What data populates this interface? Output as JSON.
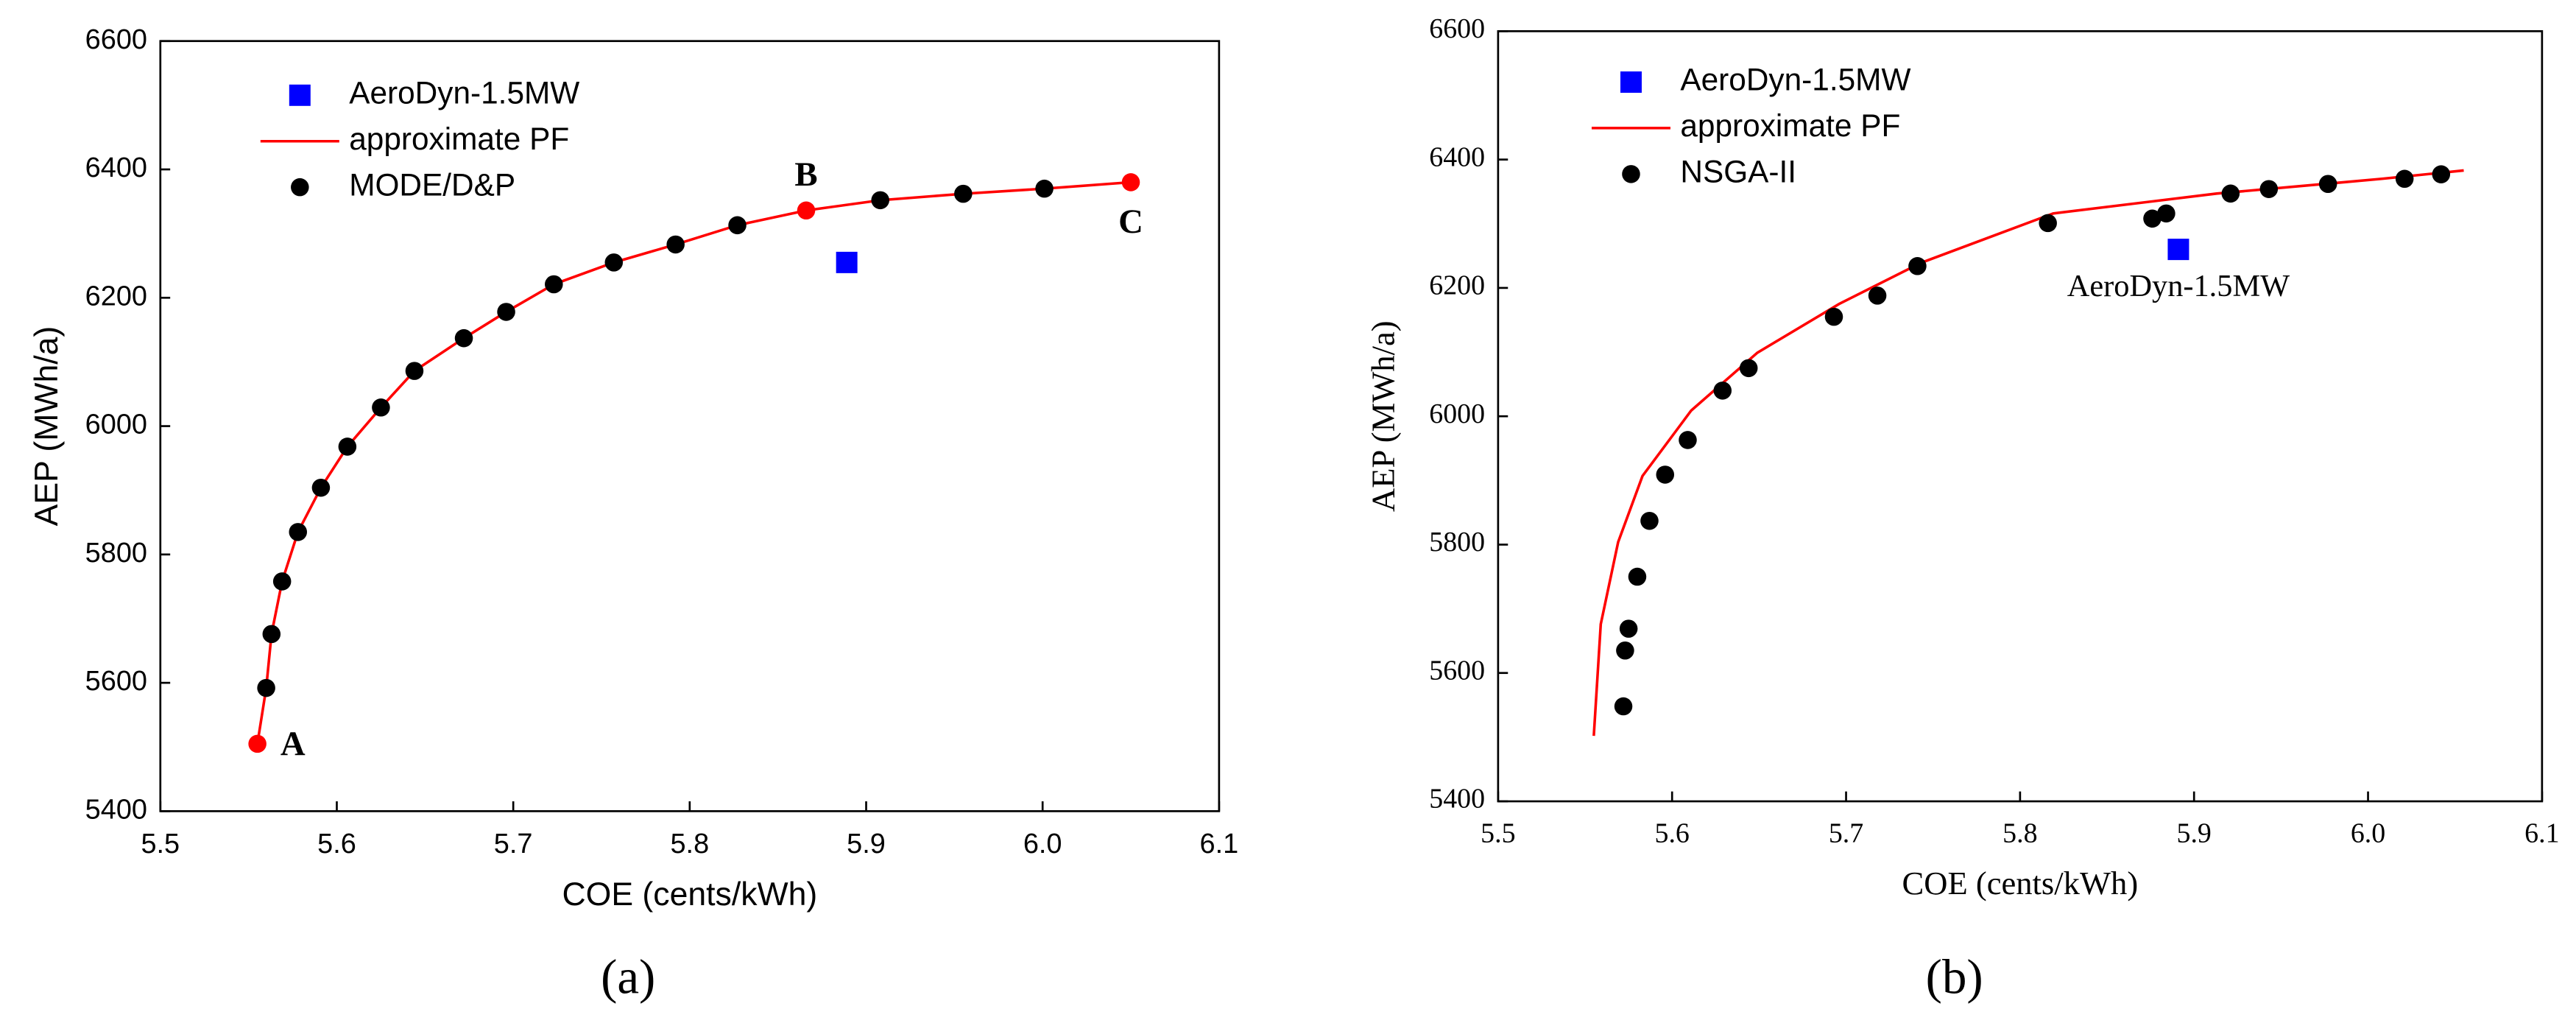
{
  "chart_data": [
    {
      "type": "scatter",
      "font": "sans",
      "panel_label": "(a)",
      "xlabel": "COE (cents/kWh)",
      "ylabel": "AEP (MWh/a)",
      "xlim": [
        5.5,
        6.1
      ],
      "xticks": [
        5.5,
        5.6,
        5.7,
        5.8,
        5.9,
        {
          "value": 6,
          "label": "6.0"
        },
        6.1
      ],
      "ylim": [
        5400,
        6600
      ],
      "yticks": [
        5400,
        5600,
        5800,
        6000,
        6200,
        6400,
        6600
      ],
      "series": [
        {
          "name": "AeroDyn-1.5MW",
          "color": "#0000ff",
          "marker": "square",
          "x": [
            5.889
          ],
          "values": [
            6255
          ]
        },
        {
          "name": "approximate PF",
          "color": "#ff0000",
          "marker": "line",
          "x": [
            5.555,
            5.56,
            5.563,
            5.569,
            5.578,
            5.591,
            5.606,
            5.625,
            5.644,
            5.672,
            5.696,
            5.723,
            5.757,
            5.792,
            5.827,
            5.866,
            5.908,
            5.955,
            6.001,
            6.05
          ],
          "values": [
            5505,
            5592,
            5676,
            5758,
            5835,
            5904,
            5968,
            6029,
            6086,
            6137,
            6178,
            6221,
            6255,
            6283,
            6313,
            6336,
            6352,
            6362,
            6370,
            6380
          ]
        },
        {
          "name": "MODE/D&P",
          "color": "#000000",
          "marker": "circle",
          "x": [
            5.56,
            5.563,
            5.569,
            5.578,
            5.591,
            5.606,
            5.625,
            5.644,
            5.672,
            5.696,
            5.723,
            5.757,
            5.792,
            5.827,
            5.908,
            5.955,
            6.001
          ],
          "values": [
            5592,
            5676,
            5758,
            5835,
            5904,
            5968,
            6029,
            6086,
            6137,
            6178,
            6221,
            6255,
            6283,
            6313,
            6352,
            6362,
            6370
          ]
        }
      ],
      "annotations": [
        {
          "text": "A",
          "color": "#ff0000",
          "x": 5.555,
          "y": 5505
        },
        {
          "text": "B",
          "color": "#ff0000",
          "x": 5.866,
          "y": 6336
        },
        {
          "text": "C",
          "color": "#ff0000",
          "x": 6.05,
          "y": 6380
        }
      ]
    },
    {
      "type": "scatter",
      "font": "serif",
      "panel_label": "(b)",
      "xlabel": "COE (cents/kWh)",
      "ylabel": "AEP (MWh/a)",
      "xlim": [
        5.5,
        6.1
      ],
      "xticks": [
        5.5,
        5.6,
        5.7,
        5.8,
        5.9,
        {
          "value": 6,
          "label": "6.0"
        },
        6.1
      ],
      "ylim": [
        5400,
        6600
      ],
      "yticks": [
        5400,
        5600,
        5800,
        6000,
        6200,
        6400,
        6600
      ],
      "series": [
        {
          "name": "AeroDyn-1.5MW",
          "color": "#0000ff",
          "marker": "square",
          "x": [
            5.891
          ],
          "values": [
            6260
          ]
        },
        {
          "name": "approximate PF",
          "color": "#ff0000",
          "marker": "line",
          "x": [
            5.555,
            5.559,
            5.569,
            5.583,
            5.611,
            5.649,
            5.696,
            5.743,
            5.819,
            5.913,
            6.008,
            6.055
          ],
          "values": [
            5502,
            5676,
            5804,
            5907,
            6009,
            6099,
            6175,
            6239,
            6316,
            6347,
            6370,
            6383
          ]
        },
        {
          "name": "NSGA-II",
          "color": "#000000",
          "marker": "circle",
          "x": [
            5.572,
            5.573,
            5.575,
            5.58,
            5.587,
            5.596,
            5.609,
            5.629,
            5.644,
            5.693,
            5.718,
            5.741,
            5.816,
            5.876,
            5.884,
            5.921,
            5.943,
            5.977,
            6.021,
            6.042
          ],
          "values": [
            5548,
            5635,
            5669,
            5750,
            5837,
            5909,
            5963,
            6040,
            6075,
            6155,
            6188,
            6234,
            6301,
            6308,
            6316,
            6347,
            6354,
            6362,
            6370,
            6377
          ]
        }
      ],
      "annotations": [
        {
          "text": "AeroDyn-1.5MW",
          "color": "#0000ff"
        }
      ]
    }
  ]
}
